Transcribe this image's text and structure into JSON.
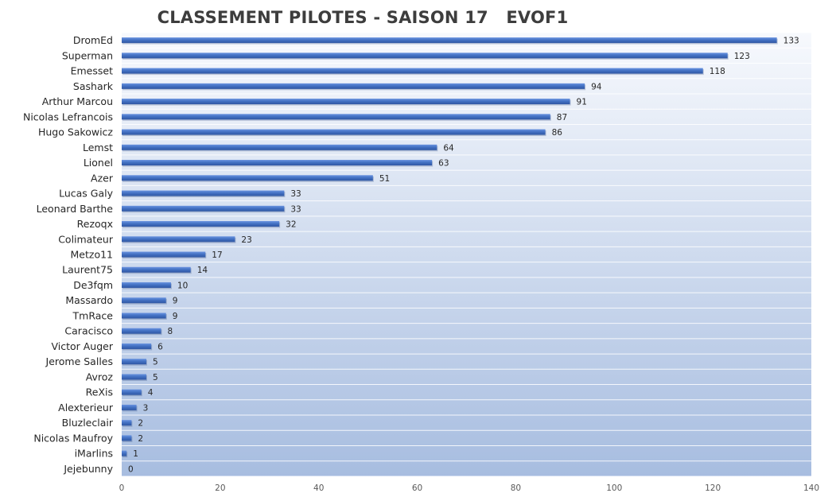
{
  "chart_data": {
    "type": "bar",
    "orientation": "horizontal",
    "title": "CLASSEMENT PILOTES - SAISON 17   EVOF1",
    "categories": [
      "DromEd",
      "Superman",
      "Emesset",
      "Sashark",
      "Arthur Marcou",
      "Nicolas Lefrancois",
      "Hugo Sakowicz",
      "Lemst",
      "Lionel",
      "Azer",
      "Lucas Galy",
      "Leonard Barthe",
      "Rezoqx",
      "Colimateur",
      "Metzo11",
      "Laurent75",
      "De3fqm",
      "Massardo",
      "TmRace",
      "Caracisco",
      "Victor Auger",
      "Jerome Salles",
      "Avroz",
      "ReXis",
      "Alexterieur",
      "Bluzleclair",
      "Nicolas Maufroy",
      "iMarlins",
      "Jejebunny"
    ],
    "values": [
      133,
      123,
      118,
      94,
      91,
      87,
      86,
      64,
      63,
      51,
      33,
      33,
      32,
      23,
      17,
      14,
      10,
      9,
      9,
      8,
      6,
      5,
      5,
      4,
      3,
      2,
      2,
      1,
      0
    ],
    "xlim": [
      0,
      140
    ],
    "xticks": [
      0,
      20,
      40,
      60,
      80,
      100,
      120,
      140
    ],
    "xlabel": "",
    "ylabel": "",
    "data_labels": true,
    "grid": "horizontal row separators",
    "legend": "none",
    "colors": {
      "bar": "#4472c4",
      "bar_light": "#6a93e0",
      "bar_dark": "#2f56a3",
      "background_top": "#f7f9fd",
      "background_bottom": "#a7bde0",
      "label_text": "#262626",
      "tick_text": "#595959",
      "title_text": "#3d3d3d"
    }
  }
}
